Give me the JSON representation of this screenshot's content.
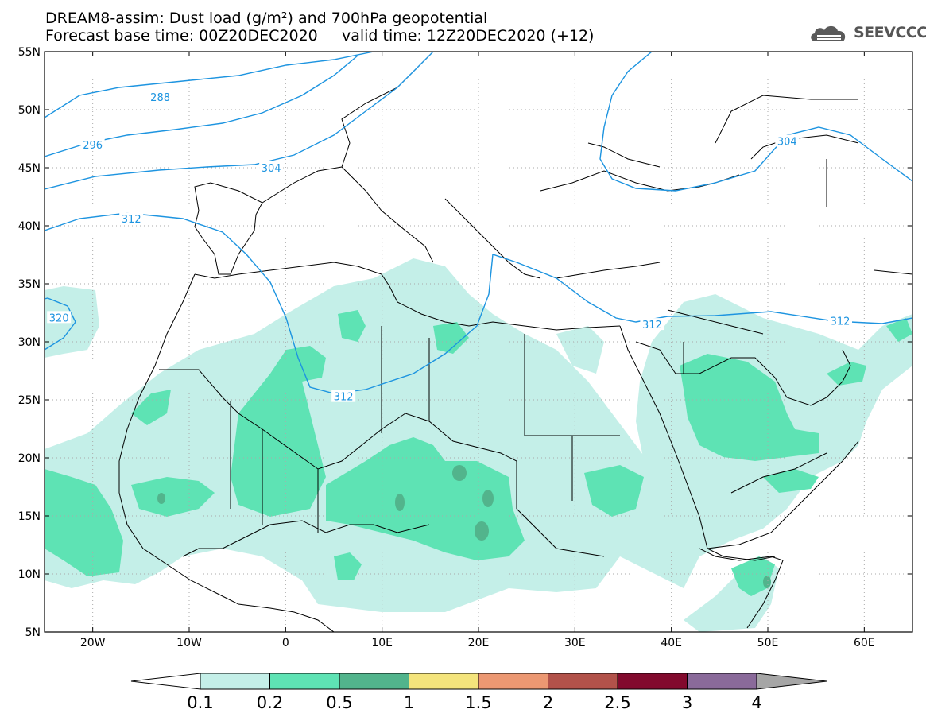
{
  "title": {
    "line1": "DREAM8-assim: Dust load (g/m²) and 700hPa geopotential",
    "line2": "Forecast base time: 00Z20DEC2020     valid time: 12Z20DEC2020 (+12)"
  },
  "logo": {
    "text": "SEEVCCC",
    "icon": "cloud-icon"
  },
  "axes": {
    "lat_labels": [
      "55N",
      "50N",
      "45N",
      "40N",
      "35N",
      "30N",
      "25N",
      "20N",
      "15N",
      "10N",
      "5N"
    ],
    "lat_values": [
      55,
      50,
      45,
      40,
      35,
      30,
      25,
      20,
      15,
      10,
      5
    ],
    "lon_labels": [
      "20W",
      "10W",
      "0",
      "10E",
      "20E",
      "30E",
      "40E",
      "50E",
      "60E"
    ],
    "lon_values": [
      -20,
      -10,
      0,
      10,
      20,
      30,
      40,
      50,
      60
    ],
    "lon_range": [
      -25,
      65
    ],
    "lat_range": [
      5,
      55
    ]
  },
  "contour_labels": [
    {
      "text": "288",
      "lon": -13,
      "lat": 51.1
    },
    {
      "text": "296",
      "lon": -20,
      "lat": 47.0
    },
    {
      "text": "304",
      "lon": -1.5,
      "lat": 45.0
    },
    {
      "text": "304",
      "lon": 52,
      "lat": 47.3
    },
    {
      "text": "312",
      "lon": -16,
      "lat": 40.6
    },
    {
      "text": "312",
      "lon": 6,
      "lat": 25.3
    },
    {
      "text": "312",
      "lon": 38,
      "lat": 31.5
    },
    {
      "text": "312",
      "lon": 57.5,
      "lat": 31.8
    },
    {
      "text": "320",
      "lon": -23.5,
      "lat": 32.1
    }
  ],
  "colorbar": {
    "labels": [
      "0.1",
      "0.2",
      "0.5",
      "1",
      "1.5",
      "2",
      "2.5",
      "3",
      "4"
    ],
    "colors": [
      "#c4efe8",
      "#5ee3b4",
      "#52b48c",
      "#f4e47c",
      "#ec9872",
      "#b2524a",
      "#820a2e",
      "#8a6a9a",
      "#a6a6a6"
    ],
    "under_color": "#ffffff",
    "over_color": "#a6a6a6"
  },
  "style": {
    "contour_color": "#1d94e0",
    "border_color": "#000000"
  }
}
